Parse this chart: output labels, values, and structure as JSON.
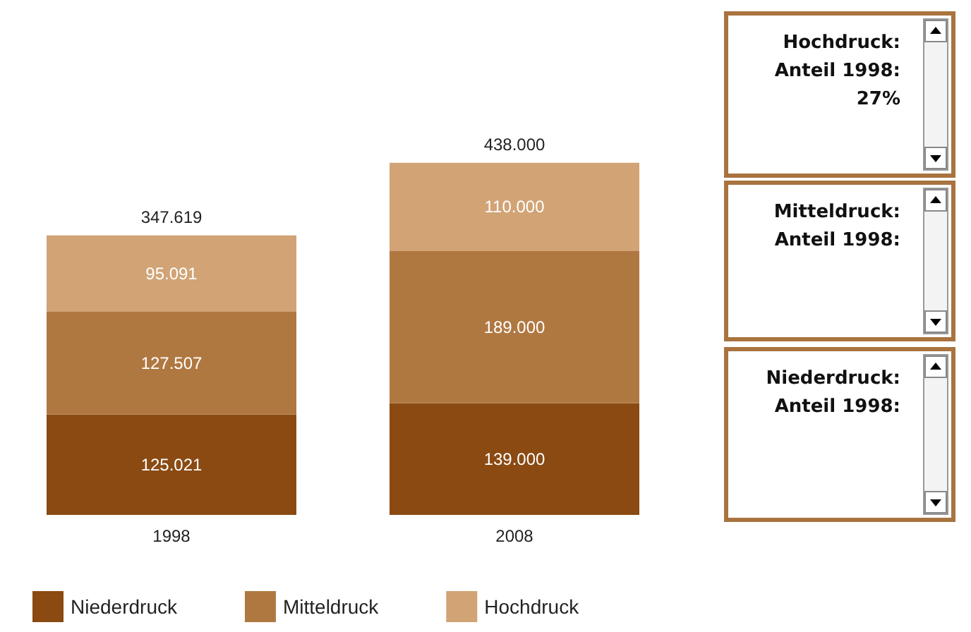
{
  "chart_data": {
    "type": "bar",
    "stacked": true,
    "categories": [
      "1998",
      "2008"
    ],
    "series": [
      {
        "name": "Niederdruck",
        "color": "#8a4a12",
        "values": [
          125021,
          139000
        ],
        "value_labels": [
          "125.021",
          "139.000"
        ]
      },
      {
        "name": "Mitteldruck",
        "color": "#b07841",
        "values": [
          127507,
          189000
        ],
        "value_labels": [
          "127.507",
          "189.000"
        ]
      },
      {
        "name": "Hochdruck",
        "color": "#d1a375",
        "values": [
          95091,
          110000
        ],
        "value_labels": [
          "95.091",
          "110.000"
        ]
      }
    ],
    "totals": [
      "347.619",
      "438.000"
    ],
    "legend": "bottom left",
    "annotations": [
      "Hochdruck: Anteil 1998: 27%",
      "Mitteldruck: Anteil 1998:",
      "Niederdruck: Anteil 1998:"
    ]
  }
}
